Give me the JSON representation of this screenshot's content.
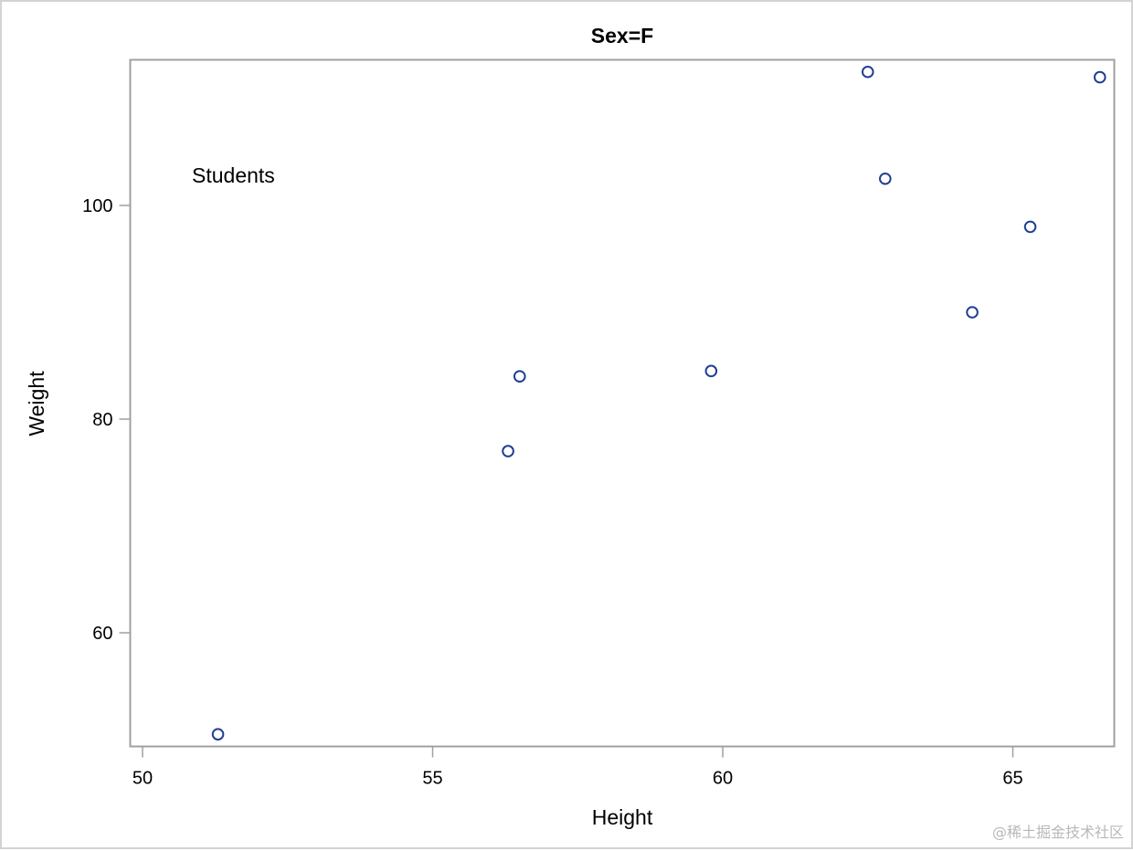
{
  "chart_data": {
    "type": "scatter",
    "title": "Sex=F",
    "xlabel": "Height",
    "ylabel": "Weight",
    "xlim": [
      49.8,
      66.9
    ],
    "ylim": [
      49.3,
      113.6
    ],
    "xticks": [
      50,
      55,
      60,
      65
    ],
    "yticks": [
      60,
      80,
      100
    ],
    "grid": false,
    "legend": null,
    "annotations": [
      {
        "text": "Students",
        "x": 50.85,
        "y": 102.5
      }
    ],
    "series": [
      {
        "name": "Sex=F",
        "marker": "open-circle",
        "color": "#1f3f93",
        "points": [
          {
            "x": 51.3,
            "y": 50.5
          },
          {
            "x": 56.3,
            "y": 77.0
          },
          {
            "x": 56.5,
            "y": 84.0
          },
          {
            "x": 59.8,
            "y": 84.5
          },
          {
            "x": 62.5,
            "y": 112.5
          },
          {
            "x": 62.8,
            "y": 102.5
          },
          {
            "x": 64.3,
            "y": 90.0
          },
          {
            "x": 65.3,
            "y": 98.0
          },
          {
            "x": 66.5,
            "y": 112.0
          }
        ]
      }
    ]
  },
  "watermark": "@稀土掘金技术社区",
  "colors": {
    "frame": "#a0a0a0",
    "outer_border": "#d3d3d3",
    "marker": "#1f3f93"
  }
}
